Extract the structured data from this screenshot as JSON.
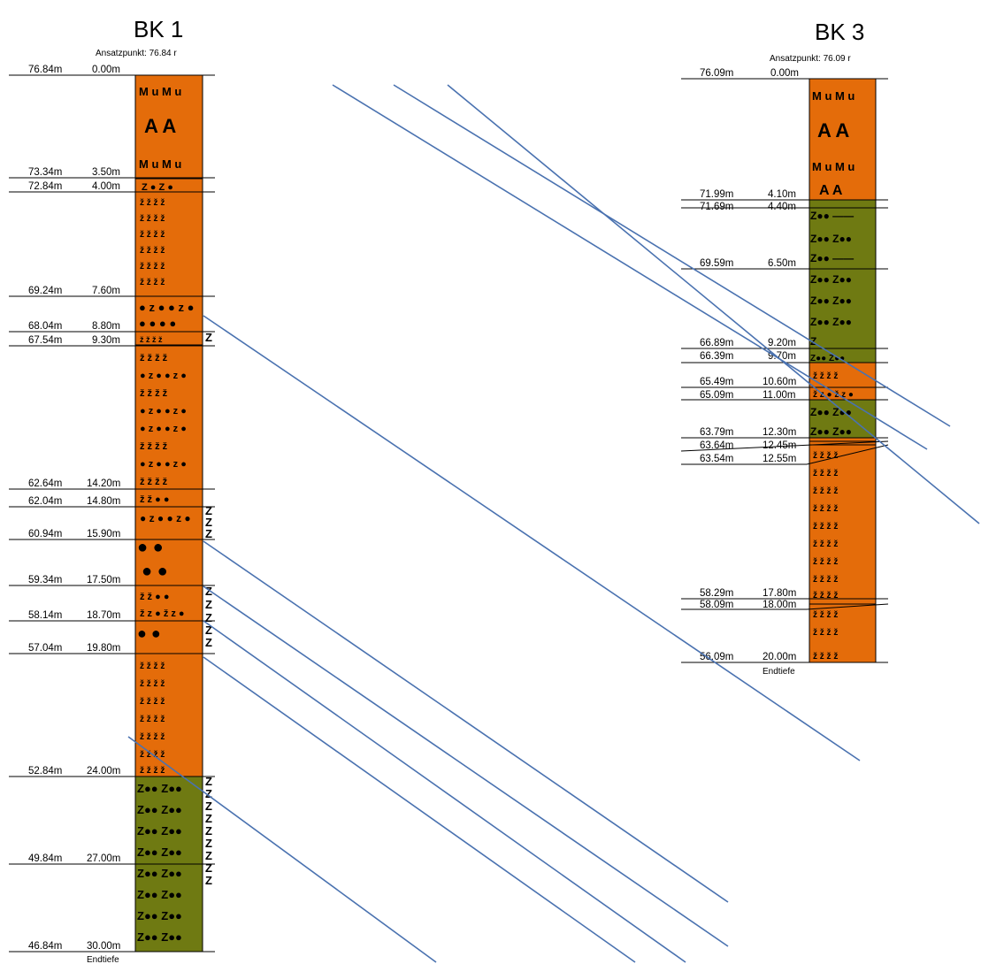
{
  "boreholes": [
    {
      "id": "bk1",
      "name": "BK 1",
      "ansatzpunkt": "Ansatzpunkt: 76.84 r",
      "endtiefe": "Endtiefe",
      "boundaries": [
        {
          "elev": "76.84m",
          "depth": "0.00m"
        },
        {
          "elev": "73.34m",
          "depth": "3.50m"
        },
        {
          "elev": "72.84m",
          "depth": "4.00m"
        },
        {
          "elev": "69.24m",
          "depth": "7.60m"
        },
        {
          "elev": "68.04m",
          "depth": "8.80m"
        },
        {
          "elev": "67.54m",
          "depth": "9.30m"
        },
        {
          "elev": "62.64m",
          "depth": "14.20m"
        },
        {
          "elev": "62.04m",
          "depth": "14.80m"
        },
        {
          "elev": "60.94m",
          "depth": "15.90m"
        },
        {
          "elev": "59.34m",
          "depth": "17.50m"
        },
        {
          "elev": "58.14m",
          "depth": "18.70m"
        },
        {
          "elev": "57.04m",
          "depth": "19.80m"
        },
        {
          "elev": "52.84m",
          "depth": "24.00m"
        },
        {
          "elev": "49.84m",
          "depth": "27.00m"
        },
        {
          "elev": "46.84m",
          "depth": "30.00m"
        }
      ]
    },
    {
      "id": "bk3",
      "name": "BK 3",
      "ansatzpunkt": "Ansatzpunkt: 76.09 r",
      "endtiefe": "Endtiefe",
      "boundaries": [
        {
          "elev": "76.09m",
          "depth": "0.00m"
        },
        {
          "elev": "71.99m",
          "depth": "4.10m"
        },
        {
          "elev": "71.69m",
          "depth": "4.40m"
        },
        {
          "elev": "69.59m",
          "depth": "6.50m"
        },
        {
          "elev": "66.89m",
          "depth": "9.20m"
        },
        {
          "elev": "66.39m",
          "depth": "9.70m"
        },
        {
          "elev": "65.49m",
          "depth": "10.60m"
        },
        {
          "elev": "65.09m",
          "depth": "11.00m"
        },
        {
          "elev": "63.79m",
          "depth": "12.30m"
        },
        {
          "elev": "63.64m",
          "depth": "12.45m"
        },
        {
          "elev": "63.54m",
          "depth": "12.55m"
        },
        {
          "elev": "58.29m",
          "depth": "17.80m"
        },
        {
          "elev": "58.09m",
          "depth": "18.00m"
        },
        {
          "elev": "56.09m",
          "depth": "20.00m"
        }
      ]
    }
  ],
  "symbols": {
    "mu": "M u M u",
    "a": "A   A",
    "silt_gravel": "Z●● Z●●",
    "z": "Z"
  },
  "colors": {
    "orange": "#e46c0a",
    "olive": "#6f7a12",
    "line_blue": "#4a72b0",
    "black": "#000000"
  }
}
